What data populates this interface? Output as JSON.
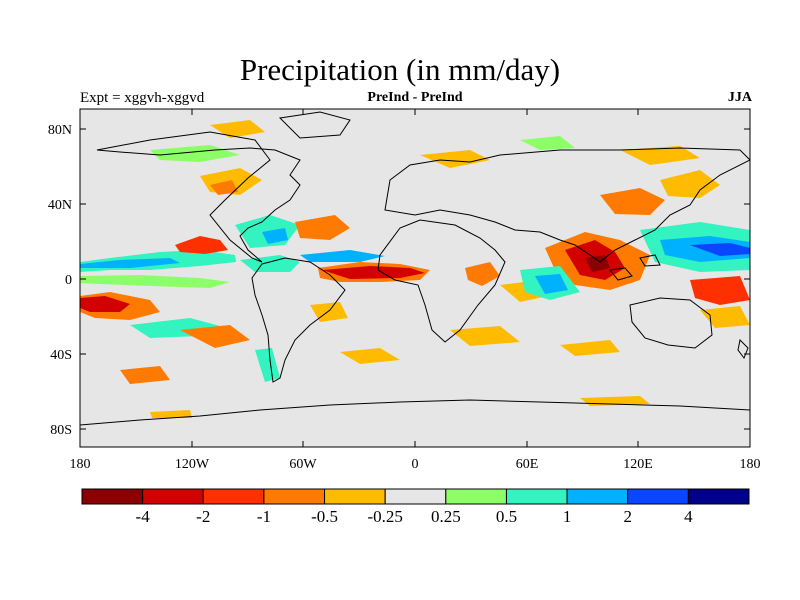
{
  "title": "Precipitation (in mm/day)",
  "subtitle_left": "Expt = xggvh-xggvd",
  "subtitle_center": "PreInd - PreInd",
  "subtitle_right": "JJA",
  "lat_ticks": [
    "80N",
    "40N",
    "0",
    "40S",
    "80S"
  ],
  "lon_ticks": [
    "180",
    "120W",
    "60W",
    "0",
    "60E",
    "120E",
    "180"
  ],
  "colorbar": {
    "colors": [
      "#8b0000",
      "#d30000",
      "#ff3000",
      "#ff7a00",
      "#ffbb00",
      "#e6e6e6",
      "#8cff68",
      "#33f3c0",
      "#00b1ff",
      "#0a45ff",
      "#00008a"
    ],
    "labels": [
      "-4",
      "-2",
      "-1",
      "-0.5",
      "-0.25",
      "0.25",
      "0.5",
      "1",
      "2",
      "4"
    ]
  },
  "map_background": "#e6e6e6"
}
